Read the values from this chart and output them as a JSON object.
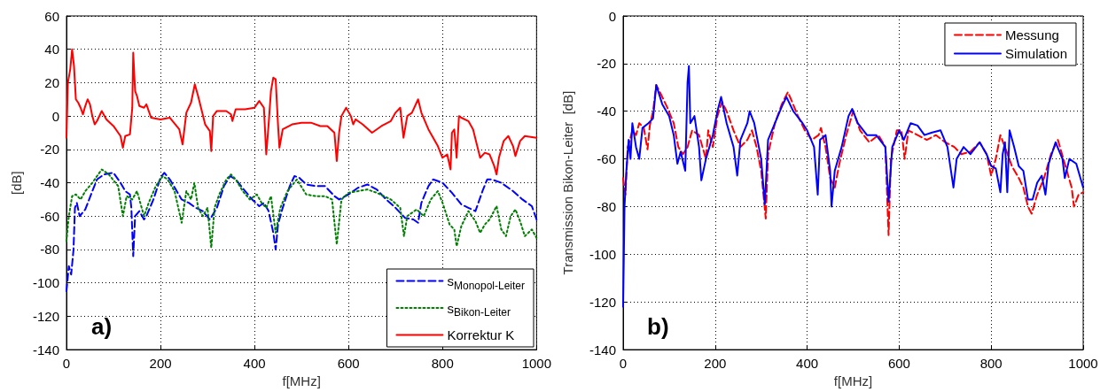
{
  "chart_data": [
    {
      "type": "line",
      "xlabel": "f[MHz]",
      "ylabel": "[dB]",
      "xlim": [
        0,
        1000
      ],
      "xticks": [
        0,
        200,
        400,
        600,
        800,
        1000
      ],
      "ylim": [
        -140,
        60
      ],
      "yticks": [
        -140,
        -120,
        -100,
        -80,
        -60,
        -40,
        -20,
        0,
        20,
        40,
        60
      ],
      "grid": true,
      "legend": "bottom right",
      "marker": "none",
      "annotations": [
        "a)"
      ],
      "series": [
        {
          "name": "s$_{Monopol-Leiter}$",
          "color": "#0000ff",
          "line_style": "dashed",
          "x": [
            0,
            5,
            10,
            15,
            18,
            22,
            28,
            40,
            55,
            65,
            80,
            100,
            115,
            125,
            135,
            138,
            142,
            146,
            155,
            165,
            170,
            185,
            200,
            208,
            220,
            245,
            260,
            275,
            290,
            305,
            320,
            335,
            348,
            360,
            380,
            395,
            410,
            420,
            430,
            440,
            445,
            450,
            460,
            475,
            485,
            495,
            510,
            530,
            550,
            570,
            580,
            600,
            620,
            640,
            660,
            680,
            700,
            720,
            738,
            748,
            755,
            770,
            780,
            800,
            820,
            840,
            855,
            870,
            885,
            895,
            905,
            925,
            950,
            970,
            990,
            1000
          ],
          "values": [
            -105,
            -90,
            -95,
            -80,
            -55,
            -52,
            -60,
            -56,
            -45,
            -38,
            -35,
            -34,
            -40,
            -45,
            -47,
            -55,
            -84,
            -60,
            -57,
            -62,
            -60,
            -50,
            -37,
            -34,
            -38,
            -50,
            -52,
            -55,
            -57,
            -62,
            -55,
            -42,
            -36,
            -38,
            -45,
            -50,
            -54,
            -52,
            -57,
            -70,
            -80,
            -65,
            -55,
            -42,
            -36,
            -37,
            -41,
            -42,
            -42,
            -48,
            -50,
            -47,
            -43,
            -41,
            -44,
            -50,
            -55,
            -61,
            -62,
            -64,
            -52,
            -42,
            -38,
            -40,
            -46,
            -53,
            -55,
            -57,
            -45,
            -38,
            -38,
            -40,
            -45,
            -50,
            -54,
            -62
          ]
        },
        {
          "name": "s$_{Bikon-Leiter}$",
          "color": "#008000",
          "line_style": "dotted",
          "x": [
            0,
            5,
            12,
            20,
            30,
            40,
            55,
            65,
            75,
            90,
            110,
            120,
            128,
            140,
            150,
            165,
            175,
            190,
            205,
            215,
            230,
            245,
            255,
            265,
            272,
            280,
            290,
            300,
            308,
            315,
            325,
            340,
            350,
            360,
            375,
            390,
            405,
            415,
            425,
            435,
            445,
            455,
            470,
            490,
            510,
            530,
            550,
            565,
            575,
            585,
            600,
            620,
            640,
            660,
            690,
            710,
            718,
            725,
            745,
            760,
            775,
            790,
            800,
            815,
            825,
            830,
            840,
            855,
            870,
            880,
            890,
            900,
            915,
            925,
            935,
            945,
            955,
            965,
            975,
            990,
            1000
          ],
          "values": [
            -75,
            -60,
            -48,
            -47,
            -50,
            -45,
            -40,
            -36,
            -32,
            -35,
            -42,
            -60,
            -48,
            -50,
            -45,
            -60,
            -52,
            -42,
            -36,
            -38,
            -45,
            -64,
            -45,
            -50,
            -40,
            -55,
            -60,
            -55,
            -79,
            -55,
            -47,
            -38,
            -35,
            -38,
            -45,
            -50,
            -47,
            -52,
            -55,
            -48,
            -70,
            -55,
            -45,
            -38,
            -47,
            -48,
            -48,
            -50,
            -77,
            -50,
            -46,
            -45,
            -44,
            -46,
            -50,
            -55,
            -72,
            -60,
            -56,
            -60,
            -50,
            -45,
            -52,
            -65,
            -68,
            -78,
            -66,
            -57,
            -63,
            -70,
            -65,
            -62,
            -54,
            -68,
            -72,
            -60,
            -56,
            -63,
            -72,
            -68,
            -73
          ]
        },
        {
          "name": "Korrektur K",
          "color": "#ff0000",
          "line_style": "solid",
          "x": [
            0,
            3,
            8,
            12,
            16,
            20,
            25,
            30,
            35,
            40,
            45,
            50,
            55,
            60,
            65,
            75,
            85,
            100,
            115,
            120,
            125,
            135,
            140,
            142,
            146,
            150,
            155,
            165,
            170,
            180,
            200,
            220,
            240,
            247,
            255,
            265,
            273,
            280,
            295,
            305,
            308,
            312,
            320,
            340,
            350,
            353,
            360,
            380,
            400,
            410,
            420,
            425,
            430,
            435,
            440,
            445,
            450,
            453,
            460,
            480,
            500,
            520,
            540,
            555,
            570,
            575,
            580,
            585,
            595,
            605,
            610,
            615,
            620,
            630,
            650,
            670,
            690,
            700,
            710,
            717,
            725,
            735,
            748,
            755,
            770,
            790,
            800,
            810,
            817,
            820,
            825,
            830,
            835,
            840,
            855,
            865,
            880,
            890,
            900,
            910,
            915,
            920,
            930,
            940,
            950,
            955,
            965,
            975,
            1000
          ],
          "values": [
            -13,
            20,
            28,
            40,
            30,
            10,
            8,
            5,
            1,
            6,
            10,
            7,
            0,
            -5,
            -3,
            3,
            -2,
            -6,
            -12,
            -19,
            -12,
            -11,
            5,
            38,
            15,
            12,
            6,
            5,
            7,
            -1,
            -2,
            -1,
            -8,
            -17,
            2,
            8,
            19,
            12,
            -5,
            -9,
            -21,
            0,
            3,
            3,
            1,
            -3,
            4,
            4,
            5,
            9,
            5,
            -23,
            -5,
            15,
            23,
            22,
            -5,
            -19,
            -8,
            -5,
            -4,
            -4,
            -6,
            -6,
            -10,
            -27,
            -10,
            0,
            5,
            0,
            -5,
            -2,
            -3,
            -5,
            -10,
            -6,
            -3,
            2,
            5,
            -13,
            0,
            2,
            10,
            2,
            -8,
            -18,
            -25,
            -23,
            -32,
            -10,
            -8,
            -25,
            0,
            -1,
            -3,
            -8,
            -25,
            -22,
            -23,
            -30,
            -35,
            -25,
            -15,
            -12,
            -18,
            -24,
            -15,
            -12,
            -13
          ]
        }
      ]
    },
    {
      "type": "line",
      "xlabel": "f[MHz]",
      "ylabel": "Transmission Bikon-Leiter  [dB]",
      "xlim": [
        0,
        1000
      ],
      "xticks": [
        0,
        200,
        400,
        600,
        800,
        1000
      ],
      "ylim": [
        -140,
        0
      ],
      "yticks": [
        -140,
        -120,
        -100,
        -80,
        -60,
        -40,
        -20,
        0
      ],
      "grid": true,
      "legend": "top right",
      "marker": "none",
      "annotations": [
        "b)"
      ],
      "series": [
        {
          "name": "Messung",
          "color": "#ff0000",
          "line_style": "dashed",
          "x": [
            0,
            5,
            10,
            15,
            20,
            28,
            35,
            45,
            53,
            58,
            65,
            72,
            80,
            95,
            110,
            120,
            130,
            140,
            150,
            165,
            180,
            185,
            195,
            205,
            215,
            225,
            240,
            255,
            270,
            280,
            290,
            300,
            310,
            315,
            330,
            345,
            358,
            365,
            380,
            395,
            410,
            425,
            430,
            440,
            450,
            460,
            470,
            485,
            500,
            515,
            535,
            555,
            570,
            577,
            582,
            595,
            605,
            612,
            620,
            640,
            660,
            680,
            700,
            720,
            735,
            755,
            775,
            790,
            800,
            810,
            820,
            830,
            845,
            860,
            870,
            880,
            888,
            900,
            915,
            930,
            945,
            960,
            975,
            980,
            990,
            1000
          ],
          "values": [
            -68,
            -75,
            -55,
            -52,
            -48,
            -50,
            -45,
            -47,
            -56,
            -46,
            -40,
            -29,
            -32,
            -38,
            -45,
            -55,
            -58,
            -55,
            -48,
            -50,
            -60,
            -48,
            -55,
            -42,
            -36,
            -40,
            -48,
            -55,
            -52,
            -48,
            -55,
            -65,
            -85,
            -58,
            -45,
            -37,
            -32,
            -35,
            -42,
            -48,
            -52,
            -50,
            -47,
            -55,
            -68,
            -72,
            -62,
            -50,
            -40,
            -48,
            -53,
            -50,
            -55,
            -92,
            -60,
            -48,
            -48,
            -60,
            -48,
            -50,
            -52,
            -50,
            -53,
            -55,
            -58,
            -57,
            -53,
            -58,
            -67,
            -60,
            -50,
            -55,
            -63,
            -68,
            -72,
            -80,
            -83,
            -75,
            -68,
            -58,
            -52,
            -62,
            -72,
            -80,
            -75,
            -74
          ]
        },
        {
          "name": "Simulation",
          "color": "#0000ff",
          "line_style": "solid",
          "x": [
            0,
            3,
            7,
            12,
            16,
            20,
            28,
            35,
            42,
            55,
            65,
            72,
            85,
            100,
            110,
            118,
            125,
            135,
            140,
            143,
            146,
            155,
            165,
            170,
            180,
            195,
            205,
            213,
            225,
            240,
            248,
            255,
            270,
            275,
            285,
            300,
            308,
            315,
            330,
            345,
            355,
            370,
            390,
            400,
            415,
            423,
            428,
            440,
            450,
            453,
            460,
            475,
            490,
            498,
            510,
            530,
            550,
            570,
            577,
            585,
            600,
            610,
            625,
            640,
            655,
            670,
            690,
            705,
            718,
            725,
            740,
            755,
            775,
            790,
            800,
            810,
            820,
            825,
            830,
            835,
            840,
            850,
            860,
            870,
            880,
            890,
            900,
            910,
            918,
            925,
            940,
            955,
            960,
            970,
            985,
            1000
          ],
          "values": [
            -122,
            -80,
            -65,
            -52,
            -60,
            -45,
            -55,
            -60,
            -47,
            -45,
            -43,
            -29,
            -37,
            -42,
            -50,
            -62,
            -57,
            -65,
            -28,
            -21,
            -45,
            -42,
            -55,
            -69,
            -60,
            -50,
            -40,
            -34,
            -45,
            -55,
            -67,
            -52,
            -45,
            -40,
            -45,
            -60,
            -79,
            -52,
            -45,
            -38,
            -34,
            -40,
            -45,
            -48,
            -55,
            -75,
            -52,
            -50,
            -65,
            -80,
            -65,
            -55,
            -42,
            -39,
            -45,
            -50,
            -50,
            -55,
            -78,
            -55,
            -48,
            -52,
            -45,
            -46,
            -50,
            -49,
            -48,
            -55,
            -72,
            -60,
            -55,
            -58,
            -53,
            -58,
            -63,
            -64,
            -74,
            -58,
            -53,
            -74,
            -48,
            -55,
            -63,
            -65,
            -77,
            -77,
            -70,
            -67,
            -75,
            -62,
            -53,
            -60,
            -68,
            -60,
            -62,
            -72
          ]
        }
      ]
    }
  ]
}
